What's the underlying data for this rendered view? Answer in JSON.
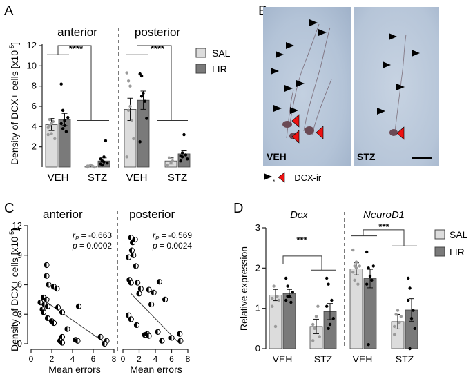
{
  "colors": {
    "sal": "#dcdcdc",
    "lir": "#7a7a7a",
    "bar_edge": "#444444",
    "sal_dot": "#9a9a9a",
    "lir_dot": "#000000",
    "arrow_black": "#000000",
    "arrow_red": "#ee1111",
    "tissue": "#b4c4d8",
    "tissue_dark": "#a5b6cd"
  },
  "panel_labels": {
    "a": "A",
    "b": "B",
    "c": "C",
    "d": "D"
  },
  "legend": {
    "sal": "SAL",
    "lir": "LIR"
  },
  "panel_b": {
    "veh_label": "VEH",
    "stz_label": "STZ",
    "key_text": "= DCX-ir",
    "key_sep": ","
  },
  "chart_data": [
    {
      "id": "A",
      "type": "bar",
      "ylabel_main": "Density of DCX+ cells [x10",
      "ylabel_sup": "-5",
      "ylabel_end": "]",
      "ylim": [
        0,
        12
      ],
      "yticks": [
        "2",
        "4",
        "6",
        "8",
        "10",
        "12"
      ],
      "groups": [
        "anterior",
        "posterior"
      ],
      "categories": [
        "VEH",
        "STZ",
        "VEH",
        "STZ"
      ],
      "series": [
        {
          "name": "SAL",
          "values": [
            4.2,
            0.1,
            5.7,
            0.6
          ],
          "errors": [
            0.6,
            0.05,
            1.1,
            0.3
          ]
        },
        {
          "name": "LIR",
          "values": [
            4.7,
            0.6,
            6.6,
            1.3
          ],
          "errors": [
            0.6,
            0.3,
            0.9,
            0.3
          ]
        }
      ],
      "points": {
        "SAL": [
          [
            3.2,
            4.1,
            4.3,
            4.5,
            2.8,
            3.9,
            4.7,
            3.3
          ],
          [
            0.0,
            0.1,
            0.2,
            0.1,
            0.0,
            0.1
          ],
          [
            9.3,
            8.5,
            6.0,
            4.6,
            2.8,
            1.0,
            5.6,
            8.0
          ],
          [
            0.2,
            0.9,
            0.4,
            0.6
          ]
        ],
        "LIR": [
          [
            8.2,
            5.6,
            4.1,
            3.5,
            4.9,
            4.3,
            3.8,
            4.6
          ],
          [
            0.3,
            0.6,
            1.0,
            2.6,
            0.4,
            0.8,
            0.2,
            0.5
          ],
          [
            9.2,
            9.0,
            7.3,
            6.5,
            4.8,
            2.5,
            7.0
          ],
          [
            0.6,
            1.0,
            3.2,
            1.2,
            0.8,
            1.1,
            1.4
          ]
        ]
      },
      "significance": [
        "****",
        "****"
      ]
    },
    {
      "id": "C",
      "type": "scatter",
      "ylabel_main": "Density of DCX+ cells [x10",
      "ylabel_sup": "-5",
      "ylabel_end": "]",
      "xlabel": "Mean errors",
      "xlim": [
        0,
        8
      ],
      "ylim": [
        0,
        12
      ],
      "xticks": [
        "0",
        "2",
        "4",
        "6",
        "8"
      ],
      "yticks": [
        "0",
        "3",
        "6",
        "9",
        "12"
      ],
      "panels": [
        {
          "title": "anterior",
          "r_label": "r",
          "r_sub": "P",
          "r_value": " = -0.663",
          "p_label": "p",
          "p_value": " = 0.0002",
          "points": [
            [
              1.5,
              8.0
            ],
            [
              1.5,
              6.9
            ],
            [
              1.7,
              6.0
            ],
            [
              2.2,
              5.8
            ],
            [
              2.5,
              5.6
            ],
            [
              1.2,
              4.7
            ],
            [
              1.5,
              4.5
            ],
            [
              0.9,
              4.2
            ],
            [
              1.3,
              4.0
            ],
            [
              1.6,
              3.8
            ],
            [
              1.1,
              3.5
            ],
            [
              1.2,
              3.2
            ],
            [
              2.0,
              2.3
            ],
            [
              2.2,
              2.1
            ],
            [
              3.0,
              3.2
            ],
            [
              4.6,
              3.8
            ],
            [
              3.5,
              1.5
            ],
            [
              3.0,
              0.7
            ],
            [
              2.8,
              0.3
            ],
            [
              3.0,
              0.1
            ],
            [
              4.3,
              0.4
            ],
            [
              4.5,
              0.3
            ],
            [
              6.7,
              0.7
            ],
            [
              7.3,
              0.3
            ],
            [
              7.1,
              0.0
            ],
            [
              1.6,
              2.6
            ],
            [
              2.6,
              3.7
            ]
          ],
          "fit": [
            [
              1.0,
              4.6
            ],
            [
              7.0,
              0.2
            ]
          ]
        },
        {
          "title": "posterior",
          "r_label": "r",
          "r_sub": "P",
          "r_value": " = -0.569",
          "p_label": "p",
          "p_value": " = 0.0024",
          "points": [
            [
              1.0,
              10.8
            ],
            [
              1.2,
              10.3
            ],
            [
              1.1,
              9.5
            ],
            [
              1.3,
              9.0
            ],
            [
              1.6,
              7.9
            ],
            [
              0.7,
              8.8
            ],
            [
              1.5,
              10.6
            ],
            [
              0.8,
              6.5
            ],
            [
              1.0,
              6.2
            ],
            [
              1.8,
              6.2
            ],
            [
              2.2,
              5.6
            ],
            [
              2.0,
              5.1
            ],
            [
              3.2,
              5.5
            ],
            [
              3.5,
              4.0
            ],
            [
              4.5,
              6.3
            ],
            [
              5.2,
              4.5
            ],
            [
              0.7,
              2.9
            ],
            [
              1.0,
              2.5
            ],
            [
              1.7,
              1.9
            ],
            [
              2.7,
              0.9
            ],
            [
              3.0,
              1.0
            ],
            [
              3.2,
              0.8
            ],
            [
              4.3,
              1.2
            ],
            [
              4.8,
              0.3
            ],
            [
              6.0,
              0.6
            ],
            [
              7.0,
              1.0
            ],
            [
              7.1,
              0.3
            ],
            [
              3.8,
              5.2
            ]
          ],
          "fit": [
            [
              1.0,
              5.1
            ],
            [
              7.0,
              0.0
            ]
          ]
        }
      ]
    },
    {
      "id": "D",
      "type": "bar",
      "ylabel": "Relative expression",
      "ylim": [
        0,
        3
      ],
      "yticks": [
        "0",
        "1",
        "2",
        "3"
      ],
      "groups": [
        "Dcx",
        "NeuroD1"
      ],
      "categories": [
        "VEH",
        "STZ",
        "VEH",
        "STZ"
      ],
      "series": [
        {
          "name": "SAL",
          "values": [
            1.33,
            0.55,
            1.98,
            0.67
          ],
          "errors": [
            0.14,
            0.18,
            0.15,
            0.18
          ]
        },
        {
          "name": "LIR",
          "values": [
            1.37,
            0.92,
            1.74,
            0.96
          ],
          "errors": [
            0.1,
            0.2,
            0.23,
            0.28
          ]
        }
      ],
      "points": {
        "SAL": [
          [
            1.25,
            1.55,
            0.55,
            1.3,
            1.2,
            1.05
          ],
          [
            0.2,
            0.5,
            0.8,
            1.05,
            0.3,
            0.6
          ],
          [
            2.45,
            2.05,
            2.15,
            1.6,
            2.05,
            1.9,
            1.7,
            2.0
          ],
          [
            0.35,
            0.85,
            0.95,
            0.65,
            0.8,
            0.55
          ]
        ],
        "LIR": [
          [
            1.75,
            1.55,
            1.3,
            1.15,
            1.4,
            1.2,
            1.3
          ],
          [
            1.75,
            1.6,
            0.6,
            1.2,
            0.75,
            1.05,
            0.5
          ],
          [
            2.4,
            2.0,
            1.8,
            1.7,
            2.05,
            1.6,
            0.1
          ],
          [
            1.75,
            1.5,
            0.75,
            0.95,
            0.5,
            1.2,
            0.0
          ]
        ]
      },
      "significance": [
        "***",
        "***"
      ]
    }
  ]
}
